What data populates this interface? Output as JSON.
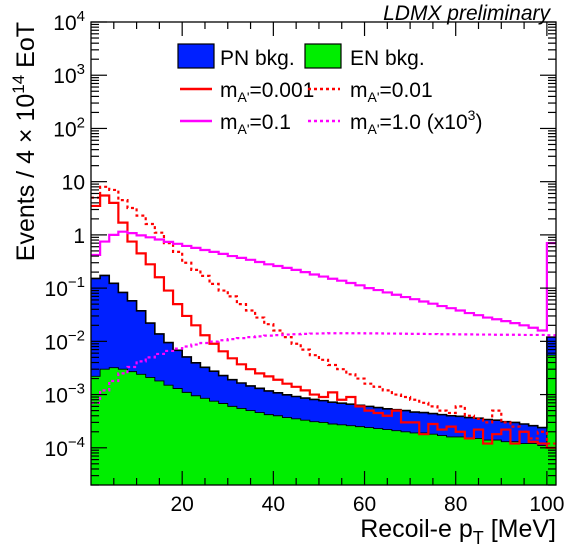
{
  "chart_data": {
    "type": "area",
    "title": "LDMX preliminary",
    "xlabel": "Recoil-e p_T [MeV]",
    "xlabel_main": "Recoil-e p",
    "xlabel_sub": "T",
    "xlabel_unit": " [MeV]",
    "ylabel": "Events / 4 × 10^14 EoT",
    "ylabel_main": "Events / 4 × 10",
    "ylabel_sup": "14",
    "ylabel_unit": " EoT",
    "x_range": [
      0,
      102
    ],
    "y_range": [
      2e-05,
      10000
    ],
    "y_scale": "log",
    "x_ticks": [
      {
        "v": 20,
        "label": "20"
      },
      {
        "v": 40,
        "label": "40"
      },
      {
        "v": 60,
        "label": "60"
      },
      {
        "v": 80,
        "label": "80"
      },
      {
        "v": 100,
        "label": "100"
      }
    ],
    "y_ticks": [
      {
        "v": 0.0001,
        "base": "10",
        "exp": "−4"
      },
      {
        "v": 0.001,
        "base": "10",
        "exp": "−3"
      },
      {
        "v": 0.01,
        "base": "10",
        "exp": "−2"
      },
      {
        "v": 0.1,
        "base": "10",
        "exp": "−1"
      },
      {
        "v": 1,
        "base": "1",
        "exp": ""
      },
      {
        "v": 10,
        "base": "10",
        "exp": ""
      },
      {
        "v": 100,
        "base": "10",
        "exp": "2"
      },
      {
        "v": 1000,
        "base": "10",
        "exp": "3"
      },
      {
        "v": 10000,
        "base": "10",
        "exp": "4"
      }
    ],
    "bin_width": 2,
    "bin_start": 0,
    "series": [
      {
        "name": "PN bkg.",
        "style": "filled",
        "color": "#0020ff",
        "values": [
          0.15,
          0.17,
          0.12,
          0.08,
          0.055,
          0.035,
          0.02,
          0.012,
          0.008,
          0.0055,
          0.004,
          0.003,
          0.0024,
          0.002,
          0.0016,
          0.0013,
          0.0011,
          0.00095,
          0.00085,
          0.00075,
          0.00068,
          0.00062,
          0.00057,
          0.00053,
          0.0005,
          0.00047,
          0.00044,
          0.00042,
          0.0004,
          0.00038,
          0.00036,
          0.00034,
          0.00032,
          0.00031,
          0.0003,
          0.00028,
          0.00027,
          0.00026,
          0.00025,
          0.00024,
          0.00023,
          0.00022,
          0.00021,
          0.0002,
          0.00019,
          0.00018,
          0.00017,
          0.00016,
          0.00014,
          0.00013,
          0.0065
        ]
      },
      {
        "name": "EN bkg.",
        "style": "filled",
        "color": "#00ee00",
        "values": [
          0.0022,
          0.003,
          0.0032,
          0.003,
          0.0027,
          0.0024,
          0.0021,
          0.0018,
          0.0015,
          0.0013,
          0.0011,
          0.00095,
          0.00085,
          0.00075,
          0.00068,
          0.0006,
          0.00055,
          0.0005,
          0.00046,
          0.00042,
          0.0004,
          0.00037,
          0.00035,
          0.00033,
          0.00031,
          0.0003,
          0.00028,
          0.00027,
          0.00026,
          0.00025,
          0.00024,
          0.00023,
          0.00022,
          0.00021,
          0.0002,
          0.00019,
          0.00019,
          0.00018,
          0.00017,
          0.00016,
          0.00016,
          0.00015,
          0.00015,
          0.00014,
          0.00014,
          0.00013,
          0.00013,
          0.00012,
          0.00012,
          0.00011,
          0.0055
        ]
      },
      {
        "name": "m_A'=0.001",
        "label_main": "m",
        "label_sub": "A'",
        "label_rest": "=0.001",
        "style": "solid",
        "color": "#ff0000",
        "values": [
          3.5,
          5.5,
          4.0,
          1.7,
          0.75,
          0.45,
          0.28,
          0.16,
          0.09,
          0.05,
          0.03,
          0.02,
          0.013,
          0.009,
          0.0065,
          0.0048,
          0.0037,
          0.003,
          0.0025,
          0.0022,
          0.0019,
          0.0016,
          0.0014,
          0.0012,
          0.001,
          0.0009,
          0.0011,
          0.0008,
          0.0009,
          0.0006,
          0.0005,
          0.00045,
          0.0004,
          0.0005,
          0.0003,
          0.0003,
          0.00018,
          0.00028,
          0.00022,
          0.00025,
          0.0002,
          0.00015,
          0.00022,
          0.00012,
          0.00018,
          0.00022,
          0.00012,
          0.0002,
          0.00013,
          0.00012,
          0.0001
        ]
      },
      {
        "name": "m_A'=0.01",
        "label_main": "m",
        "label_sub": "A'",
        "label_rest": "=0.01",
        "style": "dashed",
        "color": "#ff0000",
        "values": [
          5.0,
          8.0,
          7.0,
          4.5,
          3.2,
          2.3,
          1.6,
          1.1,
          0.7,
          0.48,
          0.3,
          0.22,
          0.17,
          0.12,
          0.09,
          0.07,
          0.05,
          0.038,
          0.028,
          0.021,
          0.016,
          0.012,
          0.009,
          0.007,
          0.0055,
          0.0045,
          0.0036,
          0.003,
          0.0024,
          0.002,
          0.0016,
          0.0014,
          0.0012,
          0.001,
          0.0009,
          0.0008,
          0.0007,
          0.0006,
          0.0005,
          0.00045,
          0.0006,
          0.0004,
          0.00035,
          0.0003,
          0.0005,
          0.0003,
          0.00025,
          0.0002,
          0.00015,
          0.0002,
          0.00012
        ]
      },
      {
        "name": "m_A'=0.1",
        "label_main": "m",
        "label_sub": "A'",
        "label_rest": "=0.1",
        "style": "solid",
        "color": "#ff00ff",
        "values": [
          0.42,
          0.75,
          1.0,
          1.15,
          1.08,
          0.98,
          0.9,
          0.82,
          0.74,
          0.68,
          0.62,
          0.57,
          0.52,
          0.48,
          0.44,
          0.4,
          0.37,
          0.34,
          0.31,
          0.28,
          0.26,
          0.24,
          0.22,
          0.2,
          0.18,
          0.165,
          0.15,
          0.138,
          0.125,
          0.113,
          0.1,
          0.092,
          0.083,
          0.075,
          0.068,
          0.062,
          0.056,
          0.051,
          0.046,
          0.042,
          0.038,
          0.034,
          0.031,
          0.028,
          0.026,
          0.024,
          0.022,
          0.02,
          0.018,
          0.016,
          0.7
        ]
      },
      {
        "name": "m_A'=1.0 (x10^3)",
        "label_main": "m",
        "label_sub": "A'",
        "label_rest": "=1.0 (x10",
        "label_sup": "3",
        "label_end": ")",
        "style": "dashed",
        "color": "#ff00ff",
        "values": [
          0.0007,
          0.0012,
          0.0018,
          0.0025,
          0.0033,
          0.0042,
          0.005,
          0.0058,
          0.0066,
          0.0073,
          0.008,
          0.0087,
          0.0093,
          0.0099,
          0.0105,
          0.011,
          0.0115,
          0.012,
          0.0124,
          0.0128,
          0.0131,
          0.0134,
          0.0136,
          0.0138,
          0.014,
          0.0141,
          0.0142,
          0.0142,
          0.0142,
          0.0142,
          0.0141,
          0.0141,
          0.014,
          0.014,
          0.0139,
          0.0138,
          0.0138,
          0.0137,
          0.0136,
          0.0136,
          0.0135,
          0.0135,
          0.0134,
          0.0134,
          0.0133,
          0.0133,
          0.0133,
          0.0132,
          0.0132,
          0.0132,
          0.013
        ]
      }
    ],
    "legend_position": "top-center"
  }
}
